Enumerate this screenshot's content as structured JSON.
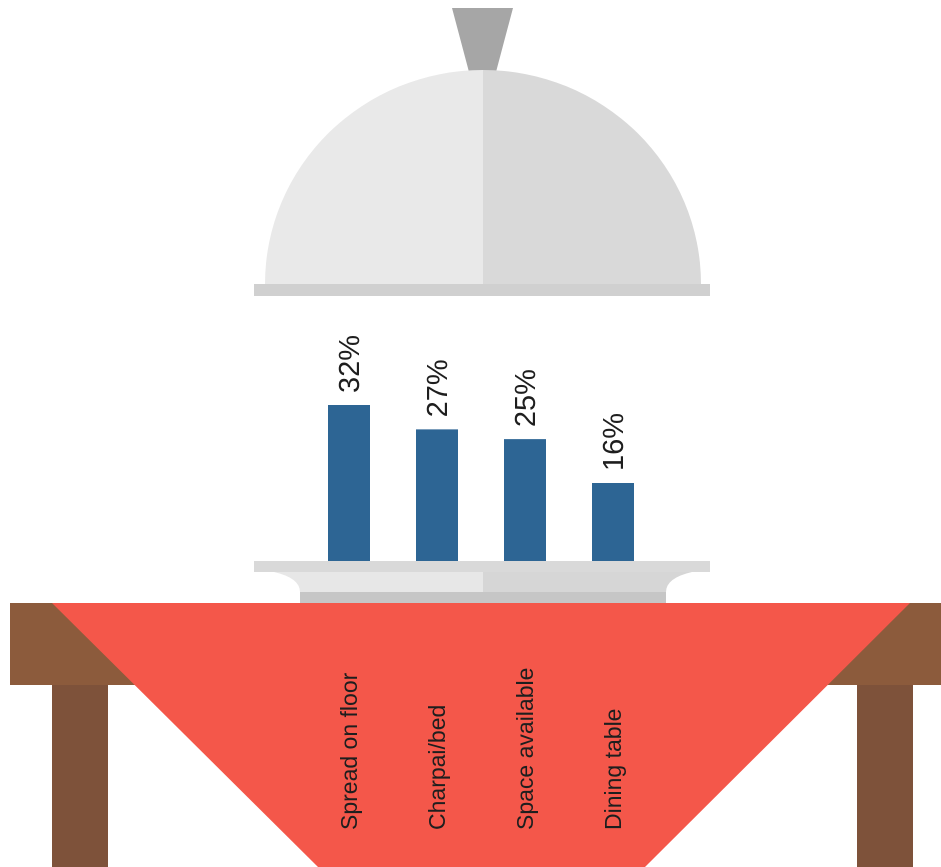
{
  "chart_data": {
    "type": "bar",
    "categories": [
      "Spread on floor",
      "Charpai/bed",
      "Space available",
      "Dining table"
    ],
    "values": [
      32,
      27,
      25,
      16
    ],
    "value_labels": [
      "32%",
      "27%",
      "25%",
      "16%"
    ],
    "title": "",
    "xlabel": "",
    "ylabel": "",
    "ylim": [
      0,
      32
    ],
    "grid": false,
    "legend": "none"
  },
  "colors": {
    "bar": "#2d6594",
    "cloche_light": "#e9e9e9",
    "cloche_dark": "#d9d9d9",
    "cloche_rim": "#d0d0d0",
    "handle": "#a6a6a6",
    "tablecloth": "#f4574a",
    "table_top": "#8c5b3c",
    "table_legs": "#7e523a",
    "plate_light": "#e7e7e7",
    "plate_dark": "#d6d6d6",
    "plate_base": "#c6c6c6",
    "text": "#1e1e1e"
  }
}
